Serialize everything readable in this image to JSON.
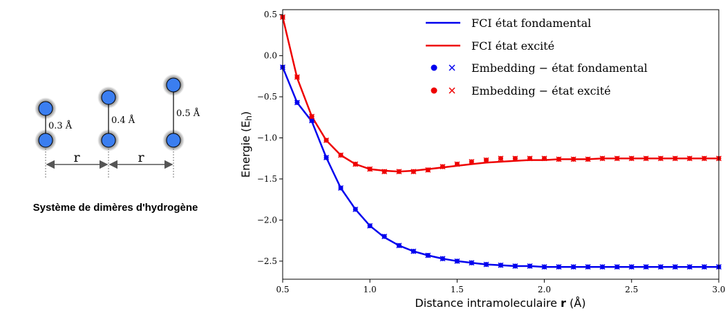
{
  "caption": "Système de dimères d'hydrogène",
  "molecule": {
    "bond_labels": [
      "0.3 Å",
      "0.4 Å",
      "0.5 Å"
    ],
    "spacing_label": "r",
    "atom_color": "#3b7ef0"
  },
  "chart_data": {
    "type": "line",
    "xlabel": "Distance intramoleculaire r (Å)",
    "xlabel_parts": [
      "Distance intramoleculaire ",
      "r",
      " (Å)"
    ],
    "ylabel": "Energie (E",
    "ylabel_sub": "h",
    "ylabel_close": ")",
    "xlim": [
      0.5,
      3.0
    ],
    "ylim": [
      -2.72,
      0.56
    ],
    "xticks": [
      0.5,
      1.0,
      1.5,
      2.0,
      2.5,
      3.0
    ],
    "xtick_labels": [
      "0.5",
      "1.0",
      "1.5",
      "2.0",
      "2.5",
      "3.0"
    ],
    "yticks": [
      0.5,
      0.0,
      -0.5,
      -1.0,
      -1.5,
      -2.0,
      -2.5
    ],
    "ytick_labels": [
      "0.5",
      "0.0",
      "−0.5",
      "−1.0",
      "−1.5",
      "−2.0",
      "−2.5"
    ],
    "grid": false,
    "legend_position": "top-right",
    "x": [
      0.5,
      0.583,
      0.667,
      0.75,
      0.833,
      0.917,
      1.0,
      1.083,
      1.167,
      1.25,
      1.333,
      1.417,
      1.5,
      1.583,
      1.667,
      1.75,
      1.833,
      1.917,
      2.0,
      2.083,
      2.167,
      2.25,
      2.333,
      2.417,
      2.5,
      2.583,
      2.667,
      2.75,
      2.833,
      2.917,
      3.0
    ],
    "series": [
      {
        "name": "FCI état fondamental",
        "kind": "line",
        "color": "#0000ee",
        "values": [
          -0.14,
          -0.57,
          -0.8,
          -1.24,
          -1.61,
          -1.87,
          -2.07,
          -2.21,
          -2.31,
          -2.38,
          -2.43,
          -2.47,
          -2.5,
          -2.52,
          -2.54,
          -2.55,
          -2.56,
          -2.56,
          -2.57,
          -2.57,
          -2.57,
          -2.57,
          -2.57,
          -2.57,
          -2.57,
          -2.57,
          -2.57,
          -2.57,
          -2.57,
          -2.57,
          -2.57
        ]
      },
      {
        "name": "FCI état excité",
        "kind": "line",
        "color": "#ee0000",
        "values": [
          0.47,
          -0.27,
          -0.74,
          -1.03,
          -1.21,
          -1.32,
          -1.38,
          -1.4,
          -1.41,
          -1.4,
          -1.38,
          -1.36,
          -1.34,
          -1.32,
          -1.3,
          -1.29,
          -1.28,
          -1.27,
          -1.27,
          -1.26,
          -1.26,
          -1.26,
          -1.25,
          -1.25,
          -1.25,
          -1.25,
          -1.25,
          -1.25,
          -1.25,
          -1.25,
          -1.25
        ]
      },
      {
        "name": "Embedding − état fondamental",
        "kind": "markers",
        "color": "#0000ee",
        "values": [
          -0.14,
          -0.57,
          -0.79,
          -1.24,
          -1.61,
          -1.87,
          -2.07,
          -2.2,
          -2.31,
          -2.38,
          -2.43,
          -2.47,
          -2.5,
          -2.52,
          -2.54,
          -2.55,
          -2.56,
          -2.56,
          -2.57,
          -2.57,
          -2.57,
          -2.57,
          -2.57,
          -2.57,
          -2.57,
          -2.57,
          -2.57,
          -2.57,
          -2.57,
          -2.57,
          -2.57
        ]
      },
      {
        "name": "Embedding − état excité",
        "kind": "markers",
        "color": "#ee0000",
        "values": [
          0.47,
          -0.26,
          -0.74,
          -1.03,
          -1.21,
          -1.32,
          -1.38,
          -1.41,
          -1.41,
          -1.41,
          -1.39,
          -1.35,
          -1.32,
          -1.29,
          -1.27,
          -1.25,
          -1.25,
          -1.25,
          -1.25,
          -1.26,
          -1.26,
          -1.26,
          -1.25,
          -1.25,
          -1.25,
          -1.25,
          -1.25,
          -1.25,
          -1.25,
          -1.25,
          -1.25
        ]
      }
    ]
  }
}
